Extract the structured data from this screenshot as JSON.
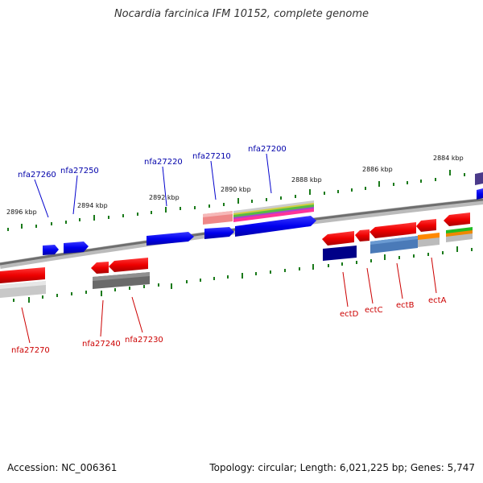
{
  "title": "Nocardia farcinica IFM 10152, complete genome",
  "footer": {
    "accession": "Accession: NC_006361",
    "info": "Topology: circular; Length: 6,021,225 bp; Genes: 5,747"
  },
  "scale_labels": [
    "2896 kbp",
    "2894 kbp",
    "2892 kbp",
    "2890 kbp",
    "2888 kbp",
    "2886 kbp",
    "2884 kbp"
  ],
  "gene_labels": {
    "top": [
      "nfa27260",
      "nfa27250",
      "nfa27220",
      "nfa27210",
      "nfa27200"
    ],
    "bottom": [
      "nfa27270",
      "nfa27240",
      "nfa27230",
      "ectD",
      "ectC",
      "ectB",
      "ectA"
    ]
  },
  "colors": {
    "label_top": "#0000aa",
    "label_bottom": "#cc0000",
    "leader_top": "#0000cc",
    "leader_bottom": "#cc0000",
    "ticks": "#1a7a1a",
    "backbone": "#777777"
  }
}
